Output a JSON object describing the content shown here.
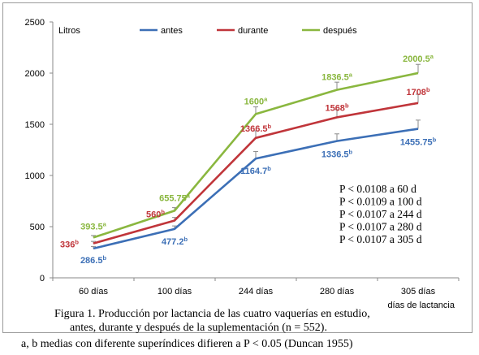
{
  "chart_data": {
    "type": "line",
    "ylabel": "Litros",
    "xlabel": "días de lactancia",
    "categories": [
      "60 días",
      "100 días",
      "244 días",
      "280 días",
      "305 días"
    ],
    "ylim": [
      0,
      2500
    ],
    "yticks": [
      0,
      500,
      1000,
      1500,
      2000,
      2500
    ],
    "grid": false,
    "legend_position": "top",
    "series": [
      {
        "name": "antes",
        "color": "#3c6fb6",
        "values": [
          286.5,
          477.2,
          1164.7,
          1336.5,
          1455.75
        ],
        "errors": [
          20,
          30,
          70,
          70,
          85
        ],
        "labels": [
          "286.5",
          "477.2",
          "1164.7",
          "1336.5",
          "1455.75"
        ],
        "sups": [
          "b",
          "b",
          "b",
          "b",
          "b"
        ]
      },
      {
        "name": "durante",
        "color": "#c0353a",
        "values": [
          336,
          560,
          1366.5,
          1568,
          1708
        ],
        "errors": [
          20,
          30,
          70,
          75,
          85
        ],
        "labels": [
          "336",
          "560",
          "1366.5",
          "1568",
          "1708"
        ],
        "sups": [
          "b",
          "b",
          "b",
          "b",
          "b"
        ]
      },
      {
        "name": "después",
        "color": "#8ab73f",
        "values": [
          393.5,
          655.75,
          1600,
          1836.5,
          2000.5
        ],
        "errors": [
          20,
          30,
          70,
          75,
          85
        ],
        "labels": [
          "393.5",
          "655.75",
          "1600",
          "1836.5",
          "2000.5"
        ],
        "sups": [
          "a",
          "a",
          "a",
          "a",
          "a"
        ]
      }
    ],
    "annotations": [
      "P < 0.0108 a 60 d",
      "P < 0.0109 a 100 d",
      "P < 0.0107 a 244 d",
      "P < 0.0107 a 280 d",
      "P < 0.0107 a 305 d"
    ]
  },
  "caption": {
    "line1": "Figura 1. Producción por lactancia de las cuatro vaquerías en estudio,",
    "line2": "antes, durante y después de la suplementación (n = 552)."
  },
  "footnote": "a, b medias con diferente superíndices difieren a P < 0.05 (Duncan 1955)"
}
